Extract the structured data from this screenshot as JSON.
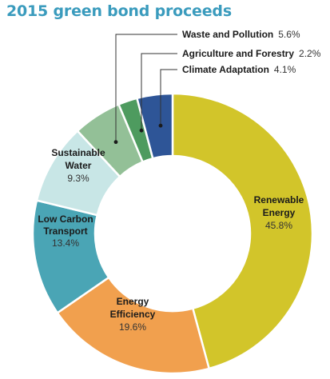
{
  "chart_data": {
    "type": "pie",
    "title": "2015 green bond proceeds",
    "unit": "%",
    "slices": [
      {
        "name": "Renewable Energy",
        "lines": [
          "Renewable",
          "Energy"
        ],
        "value": 45.8,
        "label": "45.8%",
        "color": "#d2c52a"
      },
      {
        "name": "Energy Efficiency",
        "lines": [
          "Energy",
          "Efficiency"
        ],
        "value": 19.6,
        "label": "19.6%",
        "color": "#f1a04e"
      },
      {
        "name": "Low Carbon Transport",
        "lines": [
          "Low Carbon",
          "Transport"
        ],
        "value": 13.4,
        "label": "13.4%",
        "color": "#4aa5b5"
      },
      {
        "name": "Sustainable Water",
        "lines": [
          "Sustainable",
          "Water"
        ],
        "value": 9.3,
        "label": "9.3%",
        "color": "#c8e6e6"
      },
      {
        "name": "Waste and Pollution",
        "lines": [
          "Waste and Pollution"
        ],
        "value": 5.6,
        "label": "5.6%",
        "color": "#93c097"
      },
      {
        "name": "Agriculture and Forestry",
        "lines": [
          "Agriculture and Forestry"
        ],
        "value": 2.2,
        "label": "2.2%",
        "color": "#4e9b5f"
      },
      {
        "name": "Climate Adaptation",
        "lines": [
          "Climate Adaptation"
        ],
        "value": 4.1,
        "label": "4.1%",
        "color": "#2e5597"
      }
    ]
  }
}
